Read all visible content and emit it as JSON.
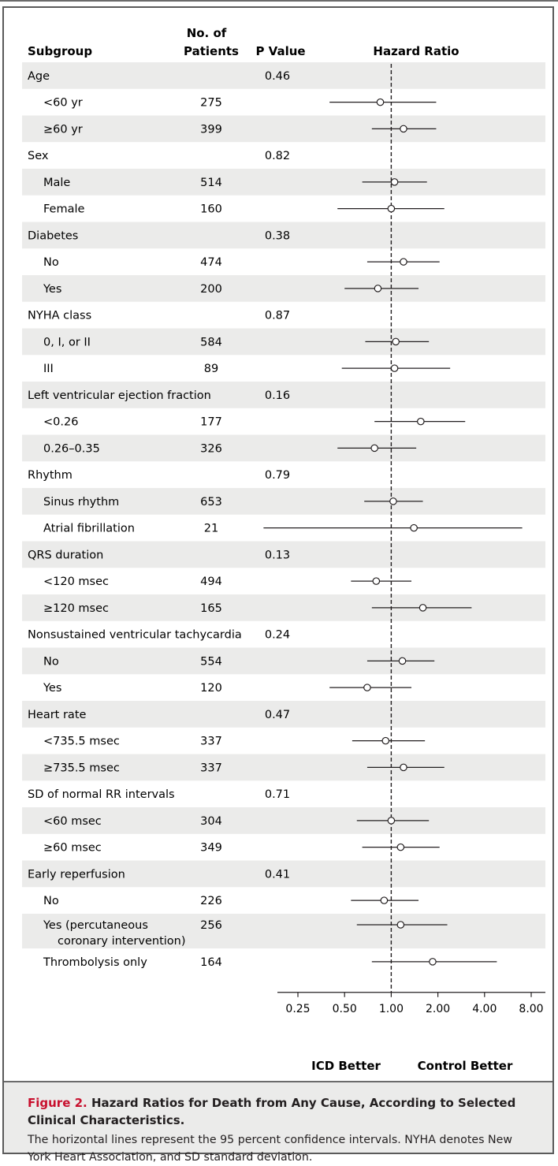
{
  "headers": {
    "subgroup": "Subgroup",
    "patients_line1": "No. of",
    "patients_line2": "Patients",
    "pvalue": "P Value",
    "hazard": "Hazard Ratio"
  },
  "axis_ticks": [
    "0.25",
    "0.50",
    "1.00",
    "2.00",
    "4.00",
    "8.00"
  ],
  "axis_tick_values": [
    0.25,
    0.5,
    1,
    2,
    4,
    8
  ],
  "favors": {
    "left": "ICD Better",
    "right": "Control Better"
  },
  "caption": {
    "label": "Figure 2.",
    "title": " Hazard Ratios for Death from Any Cause, According to Selected Clinical Characteristics.",
    "description": "The horizontal lines represent the 95 percent confidence intervals. NYHA denotes New York Heart Association, and SD standard deviation."
  },
  "chart_data": {
    "type": "forest",
    "x_scale": "log2",
    "xlim": [
      0.25,
      8
    ],
    "reference_line": 1,
    "rows": [
      {
        "label": "Age",
        "level": 0,
        "p": "0.46"
      },
      {
        "label": "<60 yr",
        "level": 1,
        "n": "275",
        "hr": 0.85,
        "lo": 0.4,
        "hi": 1.95
      },
      {
        "label": "≥60 yr",
        "level": 1,
        "n": "399",
        "hr": 1.2,
        "lo": 0.75,
        "hi": 1.95
      },
      {
        "label": "Sex",
        "level": 0,
        "p": "0.82"
      },
      {
        "label": "Male",
        "level": 1,
        "n": "514",
        "hr": 1.05,
        "lo": 0.65,
        "hi": 1.7
      },
      {
        "label": "Female",
        "level": 1,
        "n": "160",
        "hr": 1.0,
        "lo": 0.45,
        "hi": 2.2
      },
      {
        "label": "Diabetes",
        "level": 0,
        "p": "0.38"
      },
      {
        "label": "No",
        "level": 1,
        "n": "474",
        "hr": 1.2,
        "lo": 0.7,
        "hi": 2.05
      },
      {
        "label": "Yes",
        "level": 1,
        "n": "200",
        "hr": 0.82,
        "lo": 0.5,
        "hi": 1.5
      },
      {
        "label": "NYHA class",
        "level": 0,
        "p": "0.87"
      },
      {
        "label": "0, I, or II",
        "level": 1,
        "n": "584",
        "hr": 1.07,
        "lo": 0.68,
        "hi": 1.75
      },
      {
        "label": "III",
        "level": 1,
        "n": "89",
        "hr": 1.05,
        "lo": 0.48,
        "hi": 2.4
      },
      {
        "label": "Left ventricular ejection fraction",
        "level": 0,
        "p": "0.16"
      },
      {
        "label": "<0.26",
        "level": 1,
        "n": "177",
        "hr": 1.55,
        "lo": 0.78,
        "hi": 3.0
      },
      {
        "label": "0.26–0.35",
        "level": 1,
        "n": "326",
        "hr": 0.78,
        "lo": 0.45,
        "hi": 1.45
      },
      {
        "label": "Rhythm",
        "level": 0,
        "p": "0.79"
      },
      {
        "label": "Sinus rhythm",
        "level": 1,
        "n": "653",
        "hr": 1.03,
        "lo": 0.67,
        "hi": 1.6
      },
      {
        "label": "Atrial fibrillation",
        "level": 1,
        "n": "21",
        "hr": 1.4,
        "lo": 0.15,
        "hi": 7.0
      },
      {
        "label": "QRS duration",
        "level": 0,
        "p": "0.13"
      },
      {
        "label": "<120 msec",
        "level": 1,
        "n": "494",
        "hr": 0.8,
        "lo": 0.55,
        "hi": 1.35
      },
      {
        "label": "≥120 msec",
        "level": 1,
        "n": "165",
        "hr": 1.6,
        "lo": 0.75,
        "hi": 3.3
      },
      {
        "label": "Nonsustained ventricular tachycardia",
        "level": 0,
        "p": "0.24"
      },
      {
        "label": "No",
        "level": 1,
        "n": "554",
        "hr": 1.18,
        "lo": 0.7,
        "hi": 1.9
      },
      {
        "label": "Yes",
        "level": 1,
        "n": "120",
        "hr": 0.7,
        "lo": 0.4,
        "hi": 1.35
      },
      {
        "label": "Heart rate",
        "level": 0,
        "p": "0.47"
      },
      {
        "label": "<735.5 msec",
        "level": 1,
        "n": "337",
        "hr": 0.92,
        "lo": 0.56,
        "hi": 1.65
      },
      {
        "label": "≥735.5 msec",
        "level": 1,
        "n": "337",
        "hr": 1.2,
        "lo": 0.7,
        "hi": 2.2
      },
      {
        "label": "SD of normal RR intervals",
        "level": 0,
        "p": "0.71"
      },
      {
        "label": "<60 msec",
        "level": 1,
        "n": "304",
        "hr": 1.0,
        "lo": 0.6,
        "hi": 1.75
      },
      {
        "label": "≥60 msec",
        "level": 1,
        "n": "349",
        "hr": 1.15,
        "lo": 0.65,
        "hi": 2.05
      },
      {
        "label": "Early reperfusion",
        "level": 0,
        "p": "0.41"
      },
      {
        "label": "No",
        "level": 1,
        "n": "226",
        "hr": 0.9,
        "lo": 0.55,
        "hi": 1.5
      },
      {
        "label": "Yes (percutaneous|coronary intervention)",
        "level": 1,
        "n": "256",
        "hr": 1.15,
        "lo": 0.6,
        "hi": 2.3
      },
      {
        "label": "Thrombolysis only",
        "level": 1,
        "n": "164",
        "hr": 1.85,
        "lo": 0.75,
        "hi": 4.8
      }
    ]
  }
}
